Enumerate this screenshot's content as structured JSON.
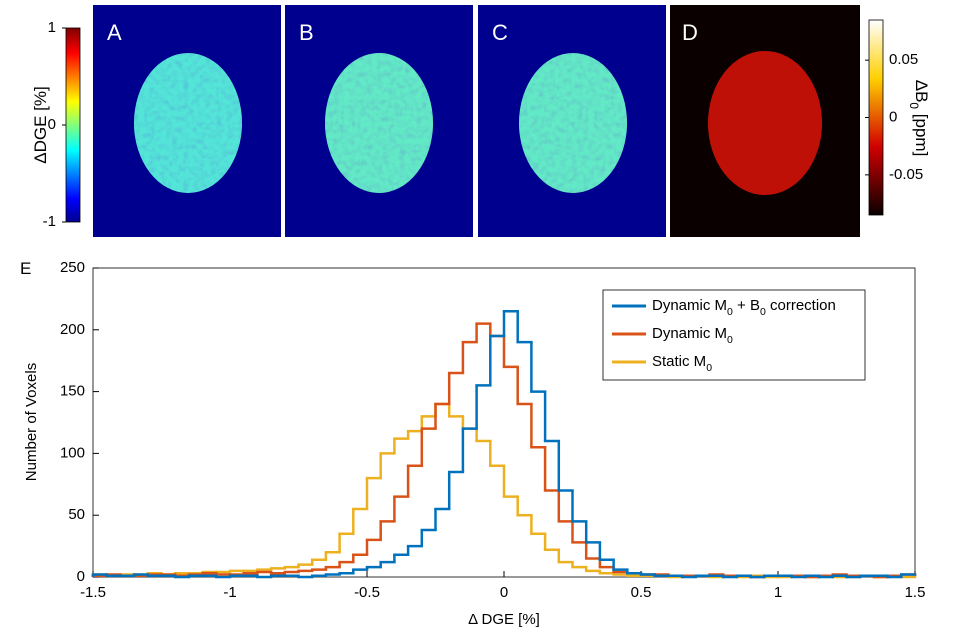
{
  "panels": [
    "A",
    "B",
    "C",
    "D"
  ],
  "colorbar_left": {
    "label": "ΔDGE [%]",
    "lim": [
      -1,
      1
    ],
    "ticks": [
      1,
      0,
      -1
    ]
  },
  "colorbar_right": {
    "label": "ΔB0 [ppm]",
    "lim": [
      -0.085,
      0.085
    ],
    "ticks": [
      0.05,
      0,
      -0.05
    ]
  },
  "chart_data": {
    "type": "histogram",
    "panel_label": "E",
    "xlabel": "Δ DGE [%]",
    "ylabel": "Number of Voxels",
    "xlim": [
      -1.5,
      1.5
    ],
    "ylim": [
      0,
      250
    ],
    "xticks": [
      -1.5,
      -1,
      -0.5,
      0,
      0.5,
      1,
      1.5
    ],
    "yticks": [
      0,
      50,
      100,
      150,
      200,
      250
    ],
    "legend": "upper right",
    "bins": [
      -1.5,
      -1.45,
      -1.4,
      -1.35,
      -1.3,
      -1.25,
      -1.2,
      -1.15,
      -1.1,
      -1.05,
      -1,
      -0.95,
      -0.9,
      -0.85,
      -0.8,
      -0.75,
      -0.7,
      -0.65,
      -0.6,
      -0.55,
      -0.5,
      -0.45,
      -0.4,
      -0.35,
      -0.3,
      -0.25,
      -0.2,
      -0.15,
      -0.1,
      -0.05,
      0,
      0.05,
      0.1,
      0.15,
      0.2,
      0.25,
      0.3,
      0.35,
      0.4,
      0.45,
      0.5,
      0.55,
      0.6,
      0.65,
      0.7,
      0.75,
      0.8,
      0.85,
      0.9,
      0.95,
      1,
      1.05,
      1.1,
      1.15,
      1.2,
      1.25,
      1.3,
      1.35,
      1.4,
      1.45,
      1.5
    ],
    "series": [
      {
        "name": "Dynamic M0 + B0 correction",
        "color": "#0072bd",
        "values": [
          2,
          1,
          1,
          2,
          1,
          1,
          0,
          1,
          1,
          0,
          1,
          1,
          0,
          1,
          1,
          0,
          1,
          2,
          3,
          6,
          8,
          12,
          18,
          25,
          38,
          55,
          85,
          120,
          155,
          195,
          215,
          190,
          150,
          110,
          70,
          45,
          28,
          14,
          6,
          3,
          2,
          1,
          1,
          0,
          1,
          1,
          0,
          1,
          0,
          1,
          1,
          0,
          1,
          0,
          1,
          0,
          1,
          1,
          0,
          2
        ]
      },
      {
        "name": "Dynamic M0",
        "color": "#d95319",
        "values": [
          1,
          2,
          1,
          1,
          2,
          2,
          1,
          2,
          3,
          2,
          2,
          3,
          4,
          3,
          4,
          5,
          6,
          8,
          12,
          18,
          30,
          45,
          65,
          90,
          120,
          140,
          165,
          190,
          205,
          195,
          170,
          140,
          105,
          70,
          45,
          28,
          15,
          8,
          4,
          3,
          2,
          2,
          1,
          1,
          1,
          2,
          1,
          1,
          0,
          1,
          1,
          1,
          0,
          1,
          2,
          1,
          1,
          0,
          1,
          2
        ]
      },
      {
        "name": "Static M0",
        "color": "#edb120",
        "values": [
          2,
          1,
          2,
          2,
          3,
          2,
          3,
          3,
          4,
          4,
          5,
          5,
          6,
          7,
          8,
          10,
          14,
          20,
          35,
          55,
          80,
          100,
          112,
          118,
          130,
          140,
          130,
          120,
          110,
          90,
          65,
          50,
          35,
          22,
          12,
          8,
          5,
          3,
          2,
          1,
          1,
          1,
          0,
          1,
          1,
          0,
          1,
          0,
          1,
          0,
          0,
          1,
          0,
          1,
          0,
          0,
          1,
          0,
          1,
          0
        ]
      }
    ]
  }
}
